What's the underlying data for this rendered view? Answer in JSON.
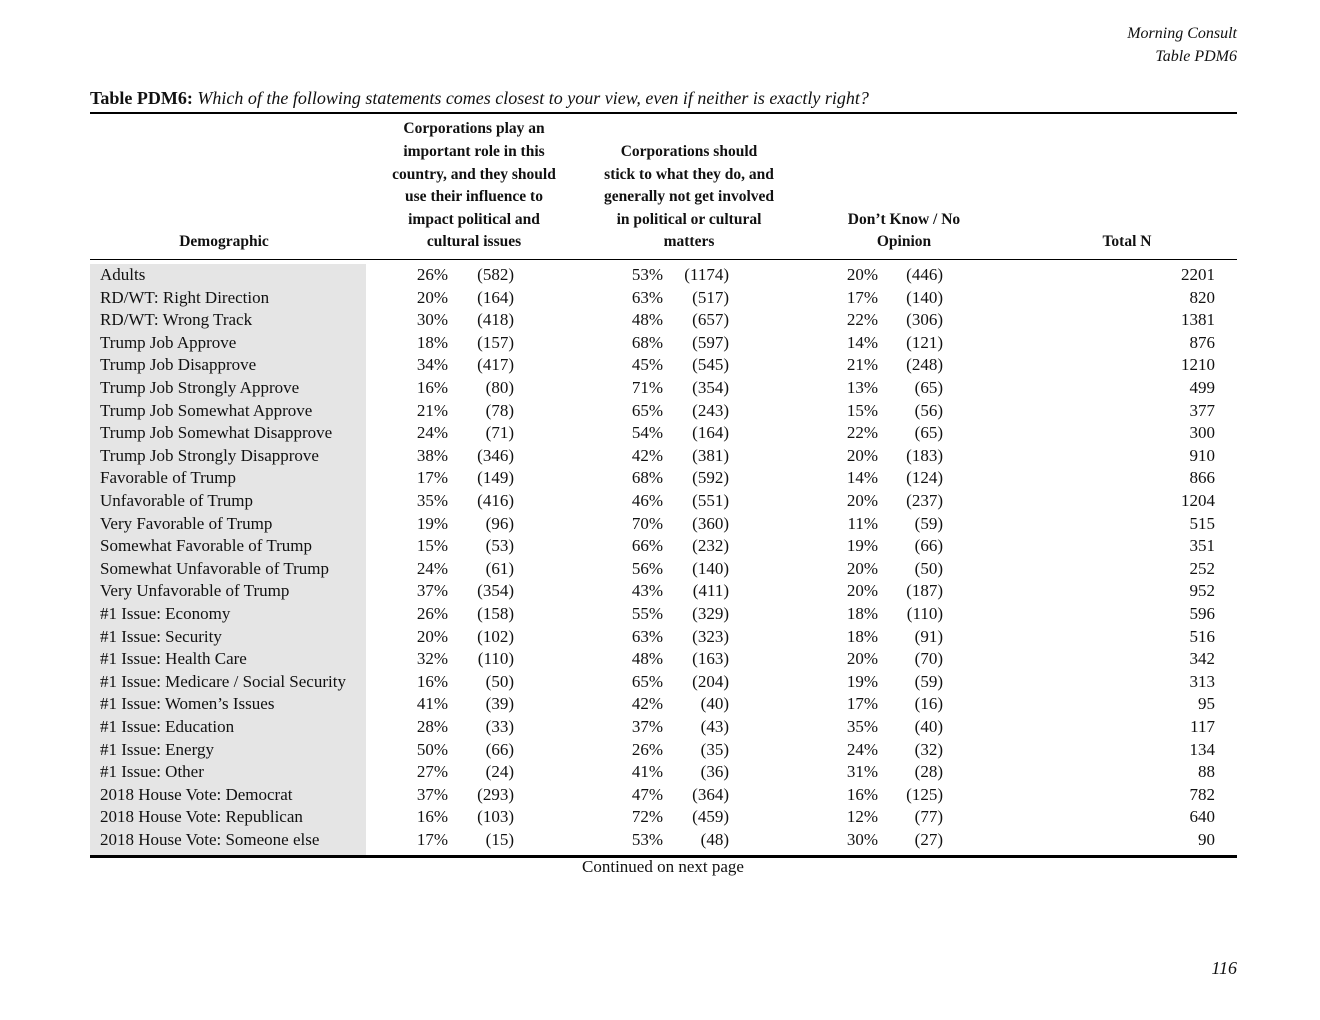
{
  "header": {
    "source": "Morning Consult",
    "table_id": "Table PDM6"
  },
  "title": {
    "label": "Table PDM6:",
    "question": "Which of the following statements comes closest to your view, even if neither is exactly right?"
  },
  "table": {
    "columns": [
      [
        "Demographic"
      ],
      [
        "Corporations play an",
        "important role in this",
        "country, and they should",
        "use their influence to",
        "impact political and",
        "cultural issues"
      ],
      [
        "Corporations should",
        "stick to what they do, and",
        "generally not get involved",
        "in political or cultural",
        "matters"
      ],
      [
        "Don’t Know / No",
        "Opinion"
      ],
      [
        "Total N"
      ]
    ],
    "rows": [
      [
        "Adults",
        "26%",
        "(582)",
        "53%",
        "(1174)",
        "20%",
        "(446)",
        "2201"
      ],
      [
        "RD/WT: Right Direction",
        "20%",
        "(164)",
        "63%",
        "(517)",
        "17%",
        "(140)",
        "820"
      ],
      [
        "RD/WT: Wrong Track",
        "30%",
        "(418)",
        "48%",
        "(657)",
        "22%",
        "(306)",
        "1381"
      ],
      [
        "Trump Job Approve",
        "18%",
        "(157)",
        "68%",
        "(597)",
        "14%",
        "(121)",
        "876"
      ],
      [
        "Trump Job Disapprove",
        "34%",
        "(417)",
        "45%",
        "(545)",
        "21%",
        "(248)",
        "1210"
      ],
      [
        "Trump Job Strongly Approve",
        "16%",
        "(80)",
        "71%",
        "(354)",
        "13%",
        "(65)",
        "499"
      ],
      [
        "Trump Job Somewhat Approve",
        "21%",
        "(78)",
        "65%",
        "(243)",
        "15%",
        "(56)",
        "377"
      ],
      [
        "Trump Job Somewhat Disapprove",
        "24%",
        "(71)",
        "54%",
        "(164)",
        "22%",
        "(65)",
        "300"
      ],
      [
        "Trump Job Strongly Disapprove",
        "38%",
        "(346)",
        "42%",
        "(381)",
        "20%",
        "(183)",
        "910"
      ],
      [
        "Favorable of Trump",
        "17%",
        "(149)",
        "68%",
        "(592)",
        "14%",
        "(124)",
        "866"
      ],
      [
        "Unfavorable of Trump",
        "35%",
        "(416)",
        "46%",
        "(551)",
        "20%",
        "(237)",
        "1204"
      ],
      [
        "Very Favorable of Trump",
        "19%",
        "(96)",
        "70%",
        "(360)",
        "11%",
        "(59)",
        "515"
      ],
      [
        "Somewhat Favorable of Trump",
        "15%",
        "(53)",
        "66%",
        "(232)",
        "19%",
        "(66)",
        "351"
      ],
      [
        "Somewhat Unfavorable of Trump",
        "24%",
        "(61)",
        "56%",
        "(140)",
        "20%",
        "(50)",
        "252"
      ],
      [
        "Very Unfavorable of Trump",
        "37%",
        "(354)",
        "43%",
        "(411)",
        "20%",
        "(187)",
        "952"
      ],
      [
        "#1 Issue: Economy",
        "26%",
        "(158)",
        "55%",
        "(329)",
        "18%",
        "(110)",
        "596"
      ],
      [
        "#1 Issue: Security",
        "20%",
        "(102)",
        "63%",
        "(323)",
        "18%",
        "(91)",
        "516"
      ],
      [
        "#1 Issue: Health Care",
        "32%",
        "(110)",
        "48%",
        "(163)",
        "20%",
        "(70)",
        "342"
      ],
      [
        "#1 Issue: Medicare / Social Security",
        "16%",
        "(50)",
        "65%",
        "(204)",
        "19%",
        "(59)",
        "313"
      ],
      [
        "#1 Issue: Women’s Issues",
        "41%",
        "(39)",
        "42%",
        "(40)",
        "17%",
        "(16)",
        "95"
      ],
      [
        "#1 Issue: Education",
        "28%",
        "(33)",
        "37%",
        "(43)",
        "35%",
        "(40)",
        "117"
      ],
      [
        "#1 Issue: Energy",
        "50%",
        "(66)",
        "26%",
        "(35)",
        "24%",
        "(32)",
        "134"
      ],
      [
        "#1 Issue: Other",
        "27%",
        "(24)",
        "41%",
        "(36)",
        "31%",
        "(28)",
        "88"
      ],
      [
        "2018 House Vote: Democrat",
        "37%",
        "(293)",
        "47%",
        "(364)",
        "16%",
        "(125)",
        "782"
      ],
      [
        "2018 House Vote: Republican",
        "16%",
        "(103)",
        "72%",
        "(459)",
        "12%",
        "(77)",
        "640"
      ],
      [
        "2018 House Vote: Someone else",
        "17%",
        "(15)",
        "53%",
        "(48)",
        "30%",
        "(27)",
        "90"
      ]
    ]
  },
  "footer": {
    "continued": "Continued on next page",
    "page_number": "116"
  }
}
